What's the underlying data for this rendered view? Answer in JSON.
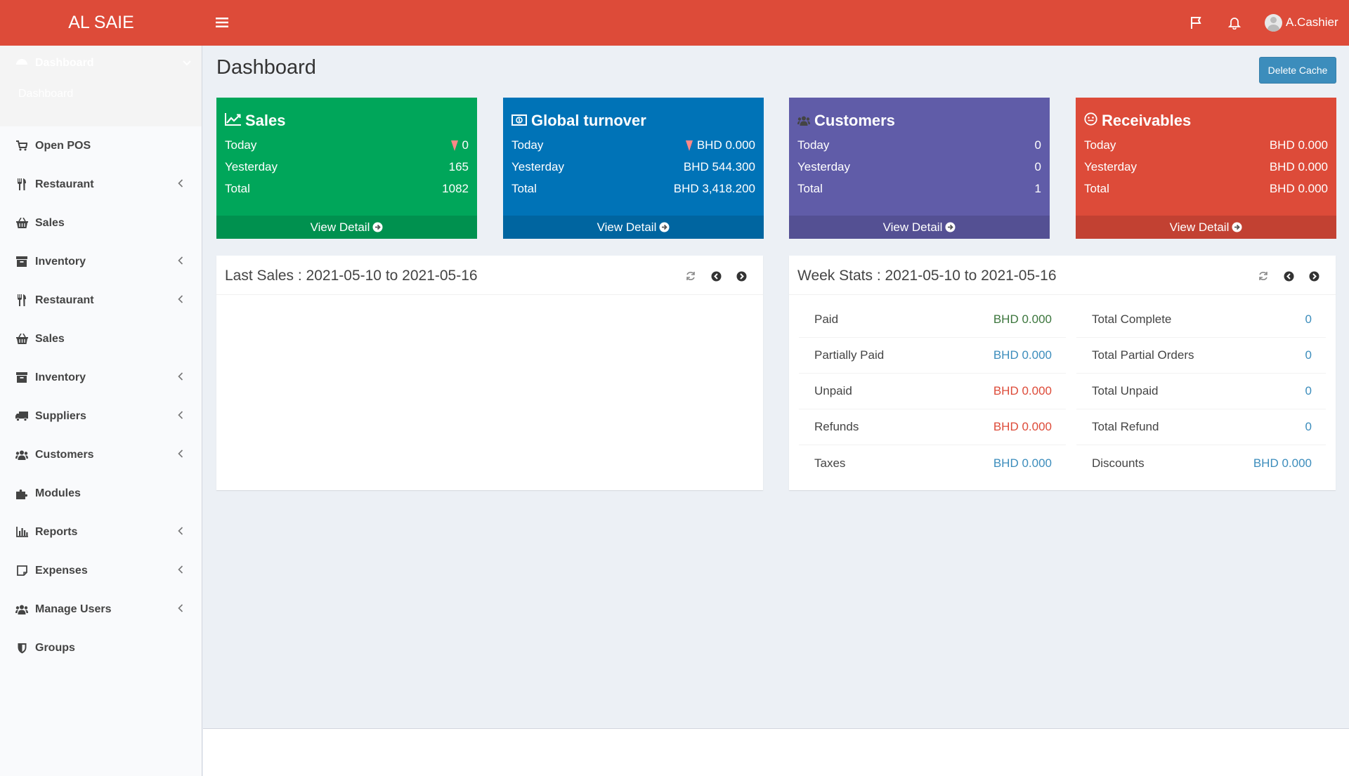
{
  "app": {
    "brand": "AL SAIE",
    "user": "A.Cashier"
  },
  "sidebar": {
    "dashboard_label": "Dashboard",
    "dashboard_sub": "Dashboard",
    "items": [
      {
        "label": "Open POS",
        "icon": "cart-icon",
        "chevron": false
      },
      {
        "label": "Restaurant",
        "icon": "cutlery-icon",
        "chevron": true
      },
      {
        "label": "Sales",
        "icon": "basket-icon",
        "chevron": false
      },
      {
        "label": "Inventory",
        "icon": "archive-icon",
        "chevron": true
      },
      {
        "label": "Restaurant",
        "icon": "cutlery-icon",
        "chevron": true
      },
      {
        "label": "Sales",
        "icon": "basket-icon",
        "chevron": false
      },
      {
        "label": "Inventory",
        "icon": "archive-icon",
        "chevron": true
      },
      {
        "label": "Suppliers",
        "icon": "truck-icon",
        "chevron": true
      },
      {
        "label": "Customers",
        "icon": "users-icon",
        "chevron": true
      },
      {
        "label": "Modules",
        "icon": "puzzle-icon",
        "chevron": false
      },
      {
        "label": "Reports",
        "icon": "bar-chart-icon",
        "chevron": true
      },
      {
        "label": "Expenses",
        "icon": "note-icon",
        "chevron": true
      },
      {
        "label": "Manage Users",
        "icon": "users-icon",
        "chevron": true
      },
      {
        "label": "Groups",
        "icon": "shield-icon",
        "chevron": false
      }
    ]
  },
  "main": {
    "title": "Dashboard",
    "delete_cache": "Delete Cache",
    "cards": [
      {
        "title": "Sales",
        "color": "#00a65a",
        "icon": "line-chart-icon",
        "today_label": "Today",
        "today": "0",
        "yesterday_label": "Yesterday",
        "yesterday": "165",
        "total_label": "Total",
        "total": "1082",
        "footer": "View Detail"
      },
      {
        "title": "Global turnover",
        "color": "#0073b7",
        "icon": "money-icon",
        "today_label": "Today",
        "today": "BHD 0.000",
        "yesterday_label": "Yesterday",
        "yesterday": "BHD 544.300",
        "total_label": "Total",
        "total": "BHD 3,418.200",
        "footer": "View Detail"
      },
      {
        "title": "Customers",
        "color": "#605ca8",
        "icon": "users-icon",
        "today_label": "Today",
        "today": "0",
        "yesterday_label": "Yesterday",
        "yesterday": "0",
        "total_label": "Total",
        "total": "1",
        "footer": "View Detail"
      },
      {
        "title": "Receivables",
        "color": "#dd4b39",
        "icon": "smile-icon",
        "today_label": "Today",
        "today": "BHD 0.000",
        "yesterday_label": "Yesterday",
        "yesterday": "BHD 0.000",
        "total_label": "Total",
        "total": "BHD 0.000",
        "footer": "View Detail"
      }
    ],
    "last_sales_title": "Last Sales : 2021-05-10 to 2021-05-16",
    "week_stats_title": "Week Stats : 2021-05-10 to 2021-05-16",
    "week_stats_left": [
      {
        "label": "Paid",
        "value": "BHD 0.000",
        "color": "green"
      },
      {
        "label": "Partially Paid",
        "value": "BHD 0.000",
        "color": "blue"
      },
      {
        "label": "Unpaid",
        "value": "BHD 0.000",
        "color": "red"
      },
      {
        "label": "Refunds",
        "value": "BHD 0.000",
        "color": "red"
      },
      {
        "label": "Taxes",
        "value": "BHD 0.000",
        "color": "blue"
      }
    ],
    "week_stats_right": [
      {
        "label": "Total Complete",
        "value": "0",
        "color": "blue"
      },
      {
        "label": "Total Partial Orders",
        "value": "0",
        "color": "blue"
      },
      {
        "label": "Total Unpaid",
        "value": "0",
        "color": "blue"
      },
      {
        "label": "Total Refund",
        "value": "0",
        "color": "blue"
      },
      {
        "label": "Discounts",
        "value": "BHD 0.000",
        "color": "blue"
      }
    ]
  }
}
